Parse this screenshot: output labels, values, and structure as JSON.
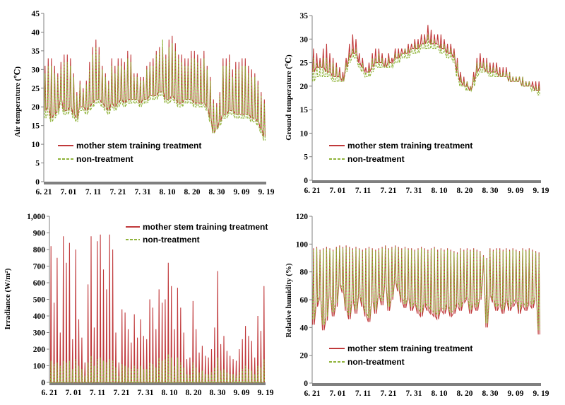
{
  "colors": {
    "treatment": "#c0393b",
    "non_treatment": "#8fb339",
    "axis": "#808080"
  },
  "chart_data": [
    {
      "type": "line",
      "ylabel": "Air temperature (℃)",
      "ylim": [
        0,
        45
      ],
      "yticks": [
        "0",
        "5",
        "10",
        "15",
        "20",
        "25",
        "30",
        "35",
        "40",
        "45"
      ],
      "categories": [
        "6. 21",
        "7. 01",
        "7. 11",
        "7. 21",
        "7. 31",
        "8. 10",
        "8. 20",
        "8. 30",
        "9. 09",
        "9. 19"
      ],
      "legend_position": "bottom-left",
      "series": [
        {
          "name": "mother stem training treatment",
          "daily_max": [
            31,
            33,
            33,
            31,
            29,
            32,
            34,
            34,
            33,
            29,
            24,
            27,
            25,
            27,
            32,
            36,
            38,
            36,
            31,
            29,
            27,
            33,
            31,
            33,
            33,
            32,
            35,
            34,
            29,
            29,
            28,
            28,
            31,
            32,
            33,
            35,
            36,
            36,
            34,
            38,
            39,
            37,
            34,
            34,
            33,
            33,
            35,
            35,
            34,
            33,
            35,
            31,
            28,
            22,
            21,
            24,
            33,
            33,
            34,
            30,
            32,
            32,
            33,
            33,
            31,
            30,
            29,
            27,
            24,
            22
          ],
          "daily_min": [
            19,
            20,
            17,
            18,
            19,
            22,
            19,
            19,
            20,
            18,
            17,
            20,
            20,
            19,
            20,
            21,
            22,
            22,
            21,
            20,
            19,
            21,
            20,
            21,
            22,
            21,
            22,
            22,
            22,
            22,
            21,
            22,
            22,
            23,
            23,
            23,
            24,
            24,
            22,
            22,
            23,
            22,
            21,
            21,
            22,
            22,
            22,
            21,
            21,
            21,
            21,
            20,
            17,
            13,
            14,
            16,
            18,
            18,
            19,
            19,
            18,
            18,
            18,
            18,
            18,
            17,
            17,
            16,
            14,
            12
          ]
        },
        {
          "name": "non-treatment",
          "daily_max": [
            29,
            31,
            31,
            29,
            28,
            30,
            32,
            32,
            31,
            28,
            23,
            26,
            24,
            26,
            30,
            34,
            36,
            34,
            30,
            28,
            26,
            31,
            29,
            31,
            31,
            30,
            33,
            32,
            28,
            28,
            27,
            27,
            30,
            31,
            31,
            34,
            35,
            38,
            33,
            36,
            37,
            35,
            33,
            32,
            31,
            31,
            33,
            33,
            32,
            31,
            33,
            30,
            27,
            21,
            20,
            23,
            31,
            31,
            32,
            28,
            30,
            30,
            31,
            31,
            29,
            28,
            28,
            26,
            23,
            21
          ],
          "daily_min": [
            17,
            18,
            16,
            17,
            18,
            21,
            18,
            18,
            19,
            17,
            16,
            19,
            19,
            18,
            19,
            20,
            21,
            21,
            20,
            19,
            18,
            20,
            19,
            20,
            21,
            20,
            21,
            21,
            21,
            21,
            20,
            21,
            21,
            22,
            22,
            22,
            23,
            23,
            21,
            21,
            22,
            21,
            20,
            20,
            21,
            21,
            21,
            20,
            20,
            20,
            20,
            19,
            16,
            13,
            14,
            15,
            17,
            17,
            18,
            18,
            17,
            17,
            17,
            17,
            17,
            16,
            16,
            15,
            13,
            11
          ]
        }
      ]
    },
    {
      "type": "line",
      "ylabel": "Ground temperature (℃)",
      "ylim": [
        0,
        35
      ],
      "yticks": [
        "0",
        "5",
        "10",
        "15",
        "20",
        "25",
        "30",
        "35"
      ],
      "categories": [
        "6. 21",
        "7. 01",
        "7. 11",
        "7. 21",
        "7. 31",
        "8. 10",
        "8. 20",
        "8. 30",
        "9. 09",
        "9. 19"
      ],
      "legend_position": "bottom-left",
      "series": [
        {
          "name": "mother stem training treatment",
          "daily_max": [
            28,
            27,
            26,
            28,
            29,
            27,
            26,
            25,
            24,
            23,
            26,
            29,
            31,
            30,
            27,
            26,
            24,
            25,
            27,
            28,
            28,
            27,
            26,
            27,
            26,
            28,
            28,
            28,
            28,
            29,
            29,
            30,
            30,
            31,
            31,
            33,
            32,
            31,
            31,
            31,
            30,
            29,
            29,
            28,
            26,
            23,
            22,
            21,
            20,
            23,
            26,
            27,
            26,
            26,
            25,
            25,
            25,
            24,
            24,
            24,
            23,
            22,
            22,
            22,
            22,
            21,
            21,
            21,
            21,
            21
          ],
          "daily_min": [
            23,
            24,
            24,
            24,
            23,
            23,
            22,
            22,
            22,
            21,
            24,
            26,
            27,
            27,
            25,
            24,
            23,
            23,
            24,
            25,
            25,
            25,
            24,
            25,
            25,
            26,
            26,
            27,
            27,
            27,
            28,
            28,
            28,
            29,
            29,
            30,
            29,
            29,
            29,
            28,
            28,
            27,
            27,
            26,
            23,
            21,
            20,
            20,
            19,
            21,
            23,
            24,
            24,
            23,
            23,
            23,
            23,
            22,
            22,
            22,
            21,
            21,
            21,
            21,
            20,
            20,
            20,
            20,
            19,
            19
          ]
        },
        {
          "name": "non-treatment",
          "daily_max": [
            26,
            25,
            25,
            26,
            26,
            25,
            25,
            24,
            23,
            22,
            25,
            27,
            28,
            28,
            25,
            25,
            23,
            24,
            26,
            26,
            27,
            26,
            25,
            26,
            25,
            27,
            27,
            27,
            28,
            28,
            28,
            29,
            29,
            29,
            30,
            31,
            30,
            30,
            29,
            29,
            29,
            28,
            28,
            27,
            25,
            22,
            21,
            21,
            20,
            22,
            25,
            25,
            25,
            25,
            24,
            24,
            24,
            23,
            23,
            23,
            23,
            22,
            22,
            22,
            22,
            21,
            21,
            20,
            20,
            20
          ],
          "daily_min": [
            21,
            22,
            22,
            22,
            22,
            22,
            21,
            21,
            21,
            21,
            23,
            25,
            26,
            26,
            24,
            23,
            22,
            22,
            23,
            24,
            24,
            24,
            24,
            24,
            24,
            25,
            25,
            26,
            26,
            26,
            27,
            27,
            27,
            28,
            28,
            28,
            28,
            28,
            28,
            27,
            27,
            26,
            26,
            25,
            22,
            20,
            20,
            19,
            19,
            20,
            22,
            23,
            23,
            23,
            22,
            22,
            22,
            22,
            22,
            22,
            21,
            21,
            21,
            21,
            20,
            20,
            20,
            19,
            19,
            18
          ]
        }
      ]
    },
    {
      "type": "line",
      "ylabel": "Irradiance (W/m²)",
      "ylim": [
        0,
        1000
      ],
      "yticks": [
        "0",
        "100",
        "200",
        "300",
        "400",
        "500",
        "600",
        "700",
        "800",
        "900",
        "1,000"
      ],
      "categories": [
        "6. 21",
        "7. 01",
        "7. 11",
        "7. 21",
        "7. 31",
        "8. 10",
        "8. 20",
        "8. 30",
        "9. 09",
        "9. 19"
      ],
      "legend_position": "top-right",
      "series": [
        {
          "name": "mother stem training treatment",
          "daily_max": [
            820,
            480,
            750,
            300,
            880,
            720,
            840,
            260,
            800,
            380,
            270,
            120,
            590,
            880,
            330,
            850,
            890,
            680,
            560,
            890,
            800,
            300,
            120,
            440,
            420,
            320,
            240,
            410,
            270,
            380,
            280,
            260,
            500,
            450,
            320,
            560,
            480,
            500,
            720,
            580,
            320,
            570,
            450,
            300,
            140,
            150,
            490,
            320,
            180,
            220,
            160,
            150,
            200,
            330,
            670,
            230,
            280,
            190,
            160,
            140,
            130,
            200,
            260,
            340,
            280,
            250,
            150,
            400,
            310,
            580
          ],
          "daily_max_nt": [
            130,
            110,
            120,
            100,
            130,
            120,
            130,
            80,
            140,
            100,
            80,
            40,
            120,
            160,
            100,
            140,
            150,
            130,
            120,
            140,
            130,
            90,
            40,
            110,
            100,
            90,
            80,
            100,
            80,
            100,
            80,
            80,
            120,
            110,
            90,
            150,
            130,
            140,
            170,
            150,
            100,
            150,
            120,
            90,
            50,
            50,
            120,
            90,
            60,
            70,
            50,
            50,
            60,
            90,
            150,
            70,
            80,
            60,
            50,
            50,
            40,
            60,
            80,
            100,
            80,
            70,
            50,
            100,
            90,
            140
          ]
        },
        {
          "name": "non-treatment"
        }
      ]
    },
    {
      "type": "line",
      "ylabel": "Relative humidity (%)",
      "ylim": [
        0,
        120
      ],
      "yticks": [
        "0",
        "20",
        "40",
        "60",
        "80",
        "100",
        "120"
      ],
      "categories": [
        "6. 21",
        "7. 01",
        "7. 11",
        "7. 21",
        "7. 31",
        "8. 10",
        "8. 20",
        "8. 30",
        "9. 09",
        "9. 19"
      ],
      "legend_position": "bottom-left",
      "series": [
        {
          "name": "mother stem training treatment",
          "daily_max": [
            97,
            98,
            96,
            97,
            98,
            97,
            96,
            98,
            99,
            98,
            99,
            98,
            97,
            98,
            97,
            96,
            97,
            98,
            97,
            96,
            97,
            98,
            99,
            97,
            98,
            99,
            98,
            97,
            98,
            97,
            97,
            96,
            97,
            98,
            97,
            96,
            97,
            98,
            96,
            97,
            96,
            97,
            96,
            95,
            94,
            97,
            96,
            97,
            96,
            97,
            96,
            95,
            92,
            90,
            97,
            96,
            97,
            97,
            96,
            97,
            96,
            97,
            96,
            95,
            97,
            96,
            97,
            96,
            95,
            94
          ],
          "daily_min": [
            42,
            55,
            60,
            38,
            45,
            62,
            48,
            55,
            70,
            65,
            52,
            46,
            58,
            50,
            62,
            55,
            48,
            44,
            58,
            50,
            62,
            56,
            70,
            52,
            60,
            72,
            66,
            58,
            54,
            60,
            52,
            56,
            50,
            48,
            55,
            52,
            50,
            48,
            46,
            52,
            50,
            54,
            48,
            50,
            55,
            52,
            58,
            60,
            50,
            55,
            52,
            60,
            75,
            40,
            62,
            58,
            52,
            55,
            50,
            58,
            52,
            55,
            58,
            50,
            55,
            52,
            56,
            54,
            60,
            35
          ]
        },
        {
          "name": "non-treatment",
          "daily_max": [
            96,
            97,
            95,
            96,
            97,
            96,
            95,
            97,
            98,
            97,
            98,
            97,
            96,
            97,
            96,
            95,
            96,
            97,
            96,
            95,
            96,
            97,
            98,
            96,
            97,
            98,
            97,
            96,
            97,
            96,
            96,
            95,
            96,
            97,
            96,
            95,
            96,
            97,
            95,
            96,
            95,
            96,
            95,
            94,
            93,
            96,
            95,
            96,
            95,
            96,
            95,
            94,
            91,
            89,
            96,
            95,
            96,
            96,
            95,
            96,
            95,
            96,
            95,
            94,
            96,
            95,
            96,
            95,
            94,
            93
          ],
          "daily_min": [
            46,
            58,
            63,
            42,
            48,
            65,
            51,
            58,
            72,
            67,
            55,
            49,
            61,
            53,
            64,
            58,
            51,
            47,
            60,
            53,
            64,
            59,
            72,
            55,
            62,
            74,
            68,
            61,
            57,
            62,
            55,
            58,
            53,
            51,
            58,
            55,
            53,
            51,
            49,
            55,
            53,
            57,
            51,
            53,
            58,
            55,
            60,
            62,
            53,
            58,
            55,
            62,
            77,
            43,
            64,
            60,
            55,
            58,
            53,
            61,
            55,
            58,
            61,
            53,
            58,
            55,
            59,
            57,
            62,
            38
          ]
        }
      ]
    }
  ]
}
